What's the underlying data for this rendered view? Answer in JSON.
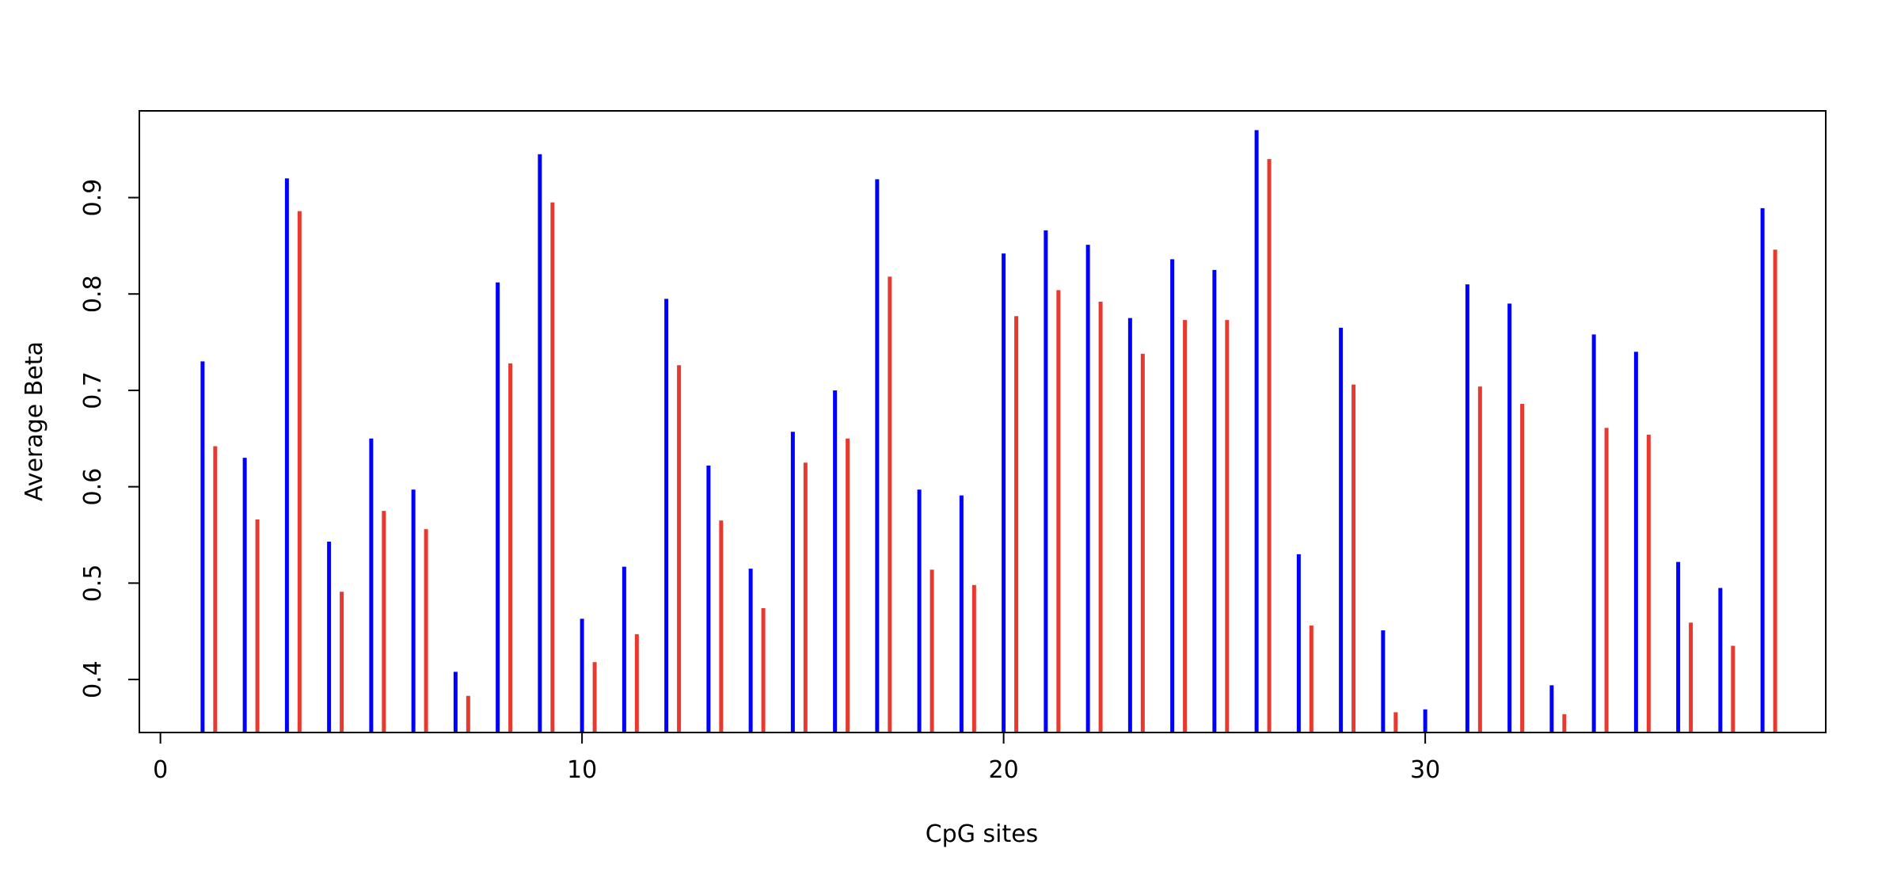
{
  "chart_data": {
    "type": "bar",
    "title": "",
    "xlabel": "CpG sites",
    "ylabel": "Average Beta",
    "xlim": [
      -0.5,
      39.5
    ],
    "ylim": [
      0.345,
      0.99
    ],
    "x_ticks": [
      0,
      10,
      20,
      30
    ],
    "y_ticks": [
      0.4,
      0.5,
      0.6,
      0.7,
      0.8,
      0.9
    ],
    "grid": false,
    "legend": "none",
    "categories": [
      1,
      2,
      3,
      4,
      5,
      6,
      7,
      8,
      9,
      10,
      11,
      12,
      13,
      14,
      15,
      16,
      17,
      18,
      19,
      20,
      21,
      22,
      23,
      24,
      25,
      26,
      27,
      28,
      29,
      30,
      31,
      32,
      33,
      34,
      35,
      36,
      37,
      38
    ],
    "series": [
      {
        "color": "#0000ff",
        "x_offset": 0,
        "values": [
          0.73,
          0.63,
          0.92,
          0.543,
          0.65,
          0.597,
          0.408,
          0.812,
          0.945,
          0.463,
          0.517,
          0.795,
          0.622,
          0.515,
          0.657,
          0.7,
          0.919,
          0.597,
          0.591,
          0.842,
          0.866,
          0.851,
          0.775,
          0.836,
          0.825,
          0.97,
          0.53,
          0.765,
          0.451,
          0.369,
          0.81,
          0.79,
          0.394,
          0.758,
          0.74,
          0.522,
          0.495,
          0.889
        ]
      },
      {
        "color": "#e8392f",
        "x_offset": 0.3,
        "values": [
          0.642,
          0.566,
          0.886,
          0.491,
          0.575,
          0.556,
          0.383,
          0.728,
          0.895,
          0.418,
          0.447,
          0.726,
          0.565,
          0.474,
          0.625,
          0.65,
          0.818,
          0.514,
          0.498,
          0.777,
          0.804,
          0.792,
          0.738,
          0.773,
          0.773,
          0.94,
          0.456,
          0.706,
          0.366,
          null,
          0.704,
          0.686,
          0.364,
          0.661,
          0.654,
          0.459,
          0.435,
          0.846
        ]
      }
    ]
  }
}
